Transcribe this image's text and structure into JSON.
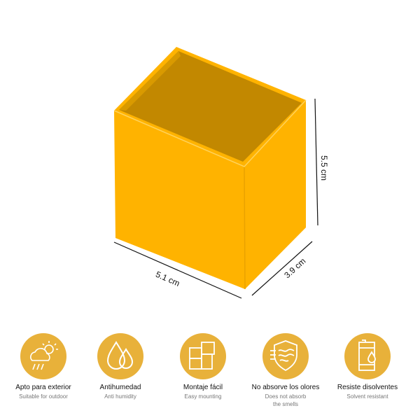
{
  "colors": {
    "box_front": "#FFB300",
    "box_side": "#FFB300",
    "box_inside": "#C28800",
    "icon_circle": "#E8B13A",
    "icon_stroke": "#FFFFFF"
  },
  "dimensions": {
    "width": "5.1 cm",
    "depth": "3.9 cm",
    "height": "5.5 cm"
  },
  "features": [
    {
      "icon": "weather-cloud-sun-rain-icon",
      "title": "Apto para exterior",
      "subtitle": "Suitable for outdoor"
    },
    {
      "icon": "water-drops-icon",
      "title": "Antihumedad",
      "subtitle": "Anti humidity"
    },
    {
      "icon": "puzzle-icon",
      "title": "Montaje fácil",
      "subtitle": "Easy mounting"
    },
    {
      "icon": "shield-waves-icon",
      "title": "No absorve los olores",
      "subtitle": "Does not absorb the smells"
    },
    {
      "icon": "barrel-drop-icon",
      "title": "Resiste disolventes",
      "subtitle": "Solvent resistant"
    }
  ]
}
